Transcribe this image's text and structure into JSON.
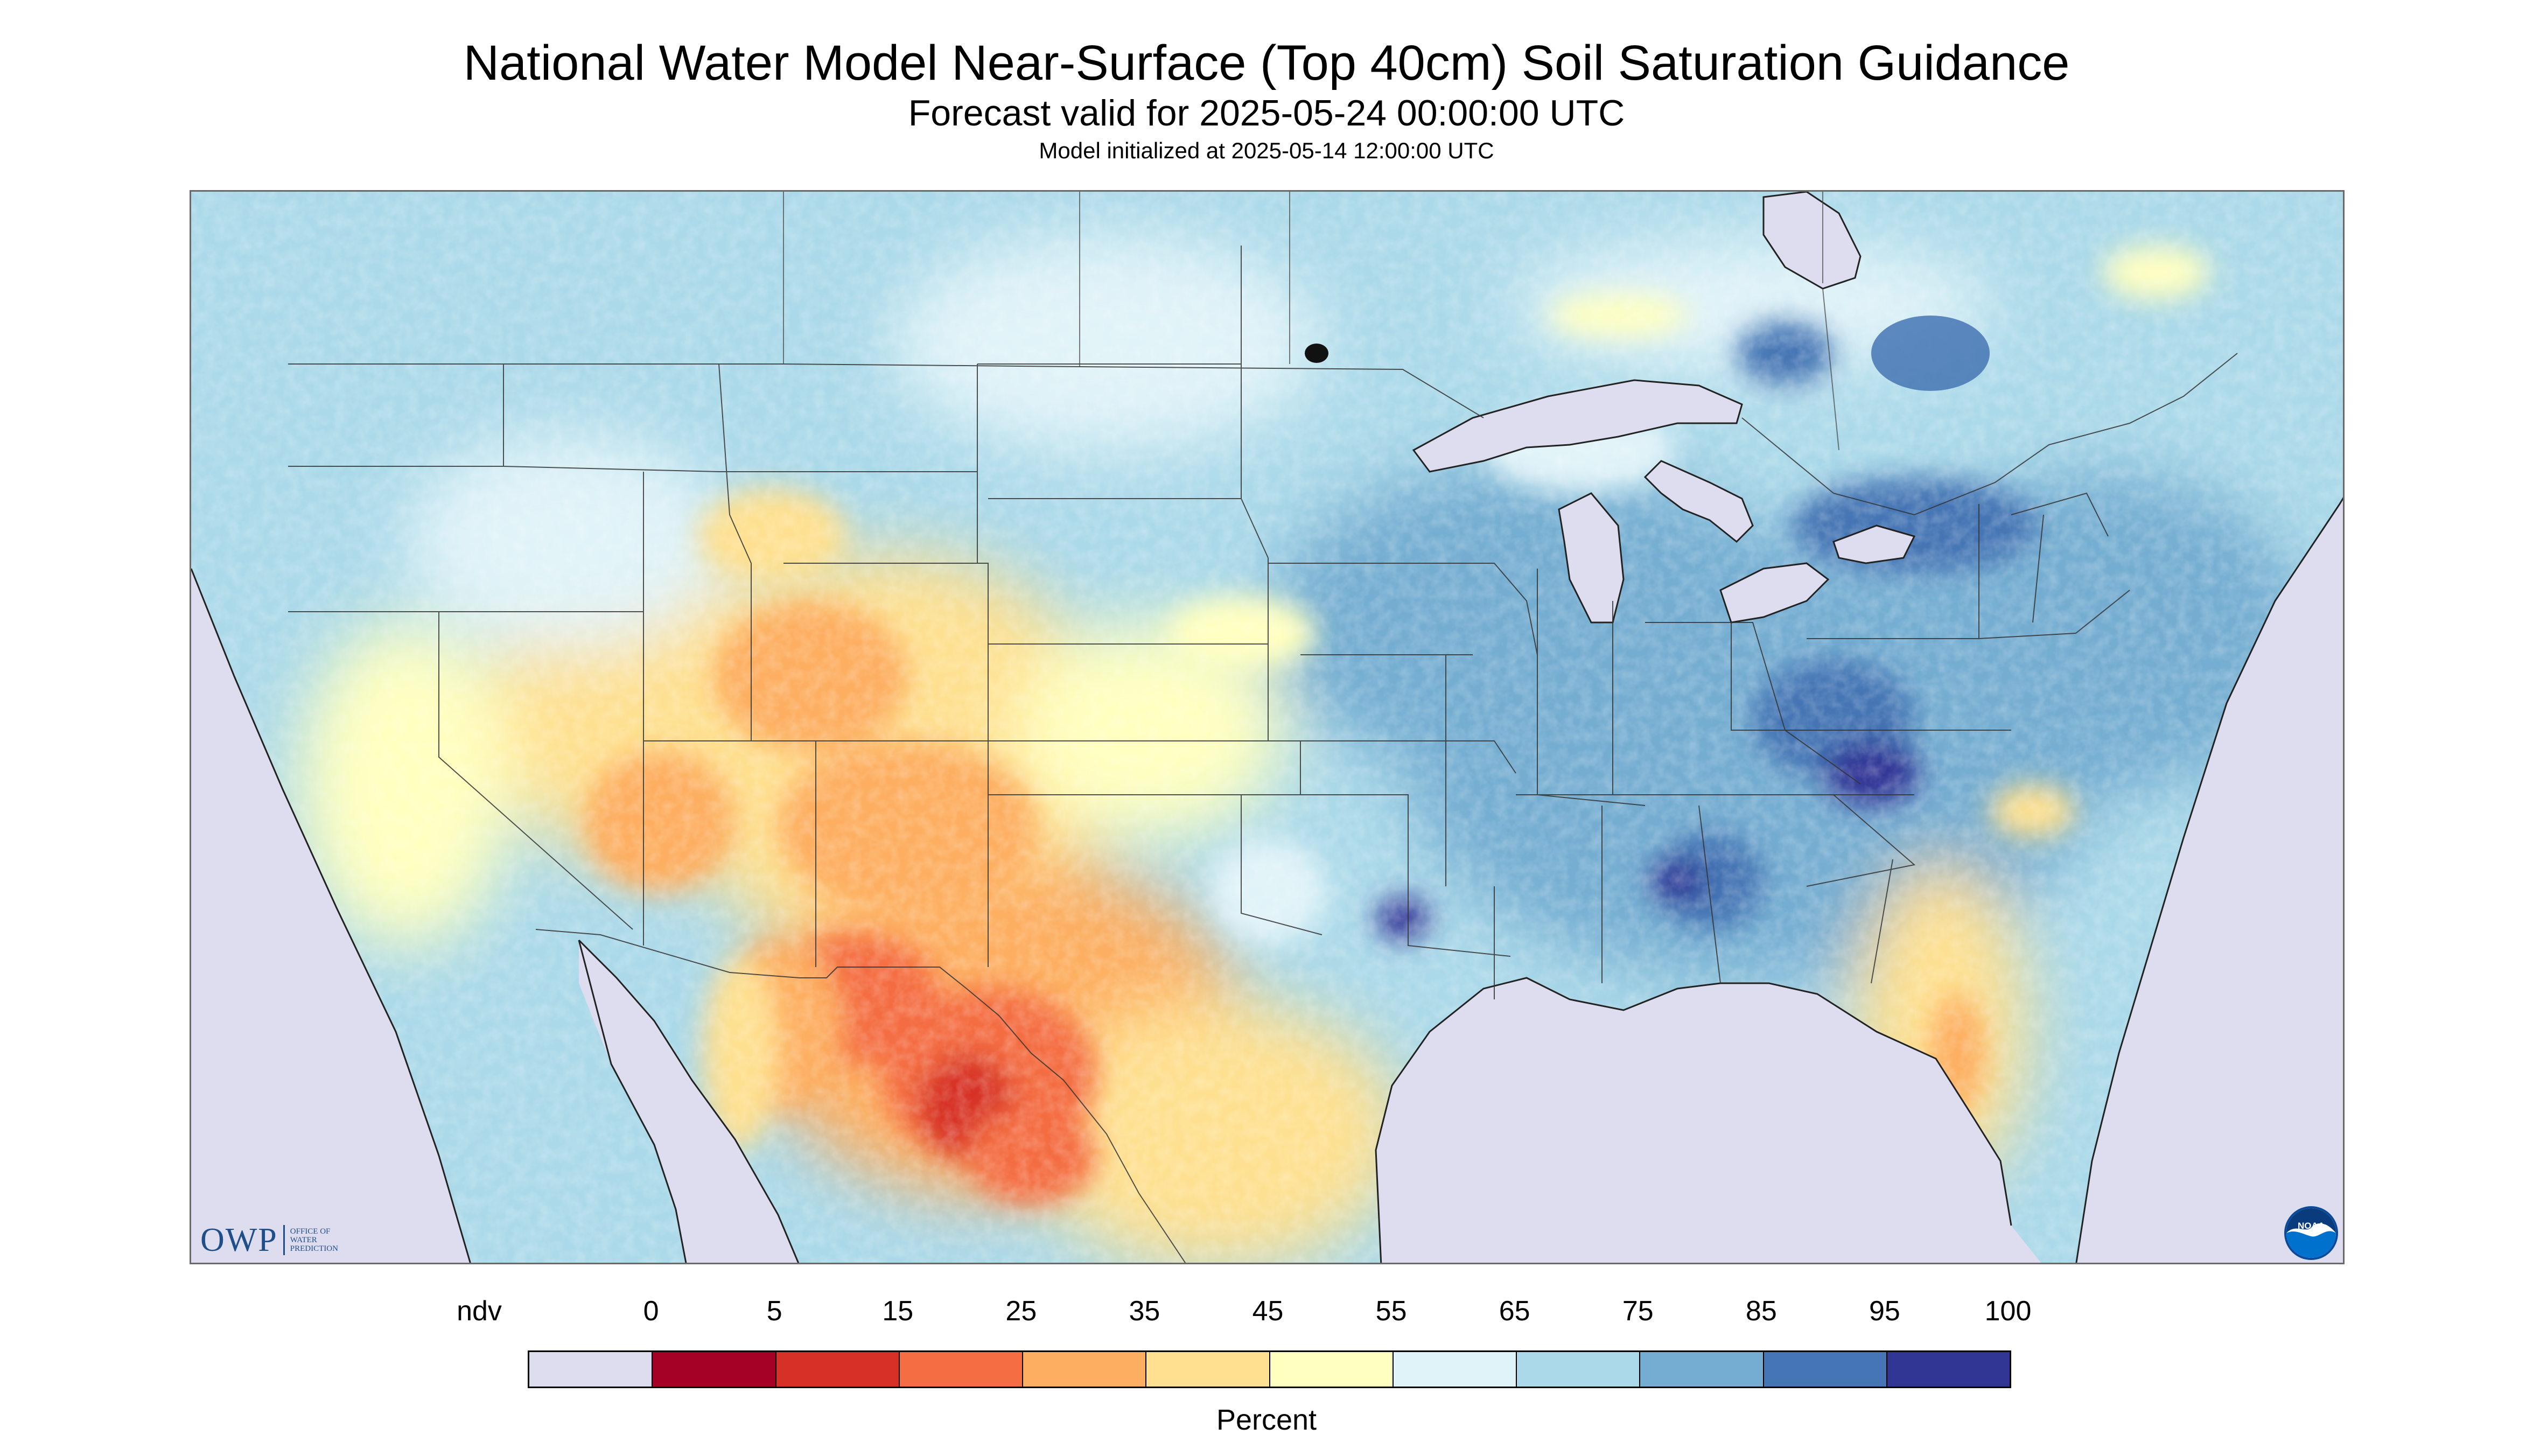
{
  "header": {
    "title": "National Water Model Near-Surface (Top 40cm) Soil Saturation Guidance",
    "subtitle": "Forecast valid for 2025-05-24 00:00:00 UTC",
    "init_line": "Model initialized at 2025-05-14 12:00:00 UTC"
  },
  "logos": {
    "owp_mark": "OWP",
    "owp_text": "OFFICE OF WATER PREDICTION",
    "noaa_text": "NOAA"
  },
  "legend": {
    "unit": "Percent",
    "labels": [
      "ndv",
      "0",
      "5",
      "15",
      "25",
      "35",
      "45",
      "55",
      "65",
      "75",
      "85",
      "95",
      "100"
    ],
    "colors": [
      "#ddddef",
      "#a50026",
      "#d73027",
      "#f46d43",
      "#fdae61",
      "#fee090",
      "#ffffbf",
      "#e0f3f8",
      "#abd9e9",
      "#74add1",
      "#4575b4",
      "#313695"
    ]
  },
  "map": {
    "projection": "Lambert Conformal",
    "region": "Contiguous United States with parts of Canada and Mexico",
    "colors": {
      "no_data": "#ddddef",
      "water": "#ddddef",
      "border": "#333333"
    }
  }
}
